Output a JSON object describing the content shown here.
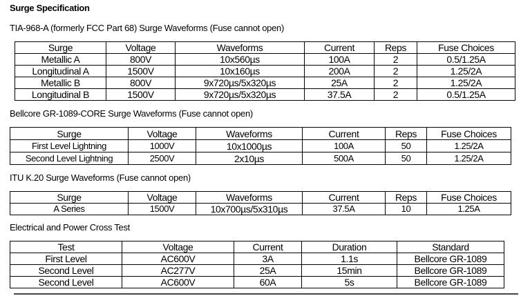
{
  "title": "Surge Specification",
  "tia": {
    "heading": "TIA-968-A (formerly FCC Part 68) Surge Waveforms (Fuse cannot open)",
    "columns": [
      "Surge",
      "Voltage",
      "Waveforms",
      "Current",
      "Reps",
      "Fuse Choices"
    ],
    "rows": [
      [
        "Metallic A",
        "800V",
        "10x560µs",
        "100A",
        "2",
        "0.5/1.25A"
      ],
      [
        "Longitudinal A",
        "1500V",
        "10x160µs",
        "200A",
        "2",
        "1.25/2A"
      ],
      [
        "Metallic B",
        "800V",
        "9x720µs/5x320µs",
        "25A",
        "2",
        "1.25/2A"
      ],
      [
        "Longitudinal B",
        "1500V",
        "9x720µs/5x320µs",
        "37.5A",
        "2",
        "0.5/1.25A"
      ]
    ]
  },
  "bellcore": {
    "heading": "Bellcore GR-1089-CORE Surge Waveforms (Fuse cannot open)",
    "columns": [
      "Surge",
      "Voltage",
      "Waveforms",
      "Current",
      "Reps",
      "Fuse Choices"
    ],
    "rows": [
      [
        "First Level Lightning",
        "1000V",
        "10x1000µs",
        "100A",
        "50",
        "1.25/2A"
      ],
      [
        "Second Level Lightning",
        "2500V",
        "2x10µs",
        "500A",
        "50",
        "1.25/2A"
      ]
    ]
  },
  "itu": {
    "heading": "ITU K.20 Surge Waveforms (Fuse cannot open)",
    "columns": [
      "Surge",
      "Voltage",
      "Waveforms",
      "Current",
      "Reps",
      "Fuse Choices"
    ],
    "rows": [
      [
        "A Series",
        "1500V",
        "10x700µs/5x310µs",
        "37.5A",
        "10",
        "1.25A"
      ]
    ]
  },
  "power": {
    "heading": "Electrical and Power Cross Test",
    "columns": [
      "Test",
      "Voltage",
      "Current",
      "Duration",
      "Standard"
    ],
    "rows": [
      [
        "First Level",
        "AC600V",
        "3A",
        "1.1s",
        "Bellcore GR-1089"
      ],
      [
        "Second Level",
        "AC277V",
        "25A",
        "15min",
        "Bellcore GR-1089"
      ],
      [
        "Second Level",
        "AC600V",
        "60A",
        "5s",
        "Bellcore GR-1089"
      ]
    ]
  }
}
